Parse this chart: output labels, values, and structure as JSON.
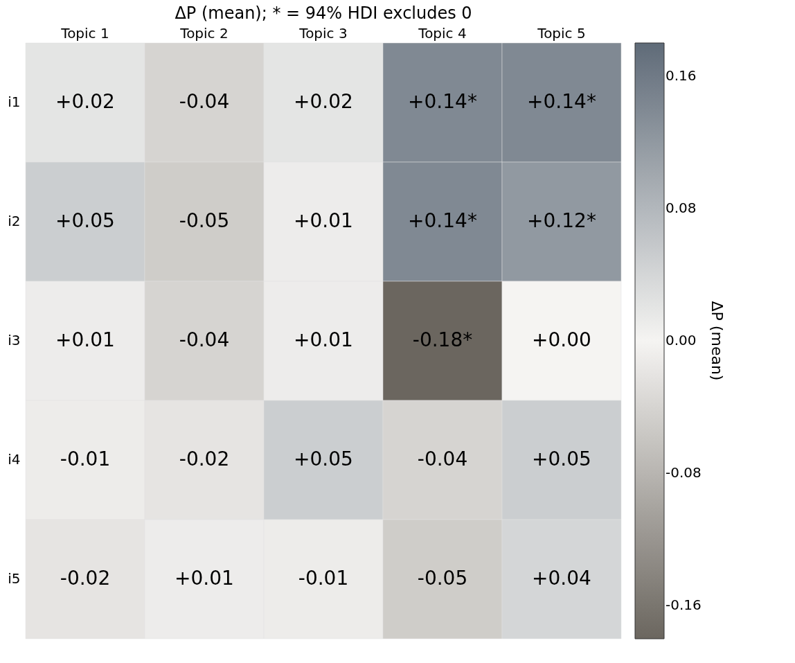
{
  "chart_data": {
    "type": "heatmap",
    "title": "ΔP (mean); * = 94% HDI excludes 0",
    "clabel": "ΔP (mean)",
    "categories": [
      "Topic 1",
      "Topic 2",
      "Topic 3",
      "Topic 4",
      "Topic 5"
    ],
    "y_categories": [
      "i1",
      "i2",
      "i3",
      "i4",
      "i5"
    ],
    "cells": [
      [
        0.02,
        -0.04,
        0.02,
        0.14,
        0.14
      ],
      [
        0.05,
        -0.05,
        0.01,
        0.14,
        0.12
      ],
      [
        0.01,
        -0.04,
        0.01,
        -0.18,
        0.0
      ],
      [
        -0.01,
        -0.02,
        0.05,
        -0.04,
        0.05
      ],
      [
        -0.02,
        0.01,
        -0.01,
        -0.05,
        0.04
      ]
    ],
    "cell_labels": [
      [
        "+0.02",
        "-0.04",
        "+0.02",
        "+0.14*",
        "+0.14*"
      ],
      [
        "+0.05",
        "-0.05",
        "+0.01",
        "+0.14*",
        "+0.12*"
      ],
      [
        "+0.01",
        "-0.04",
        "+0.01",
        "-0.18*",
        "+0.00"
      ],
      [
        "-0.01",
        "-0.02",
        "+0.05",
        "-0.04",
        "+0.05"
      ],
      [
        "-0.02",
        "+0.01",
        "-0.01",
        "-0.05",
        "+0.04"
      ]
    ],
    "clim": [
      -0.18,
      0.18
    ],
    "cticks": [
      -0.16,
      -0.08,
      {
        "value": 0,
        "label": "0.00"
      },
      0.08,
      0.16
    ],
    "colors": [
      "#6b665f",
      "#f5f4f2",
      "#5f6b78"
    ]
  }
}
